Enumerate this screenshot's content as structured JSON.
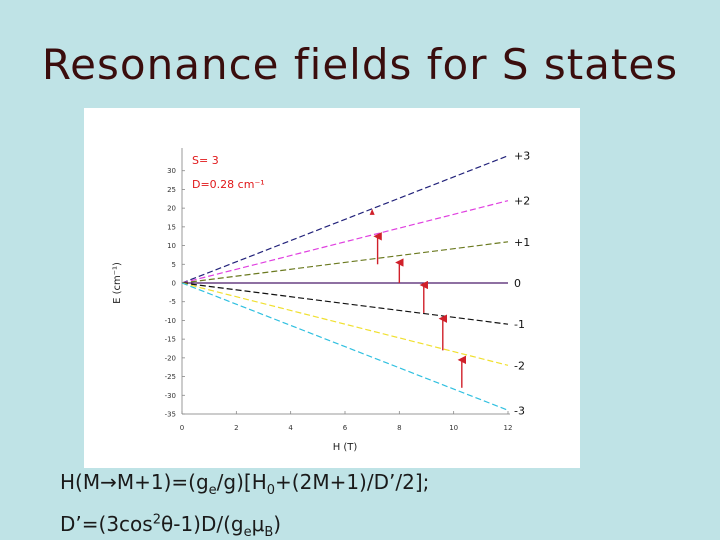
{
  "slide": {
    "title": "Resonance fields for S states",
    "formula1": {
      "a": "H(M",
      "arrow": "→",
      "b": "M+1)=(g",
      "e_sub": "e",
      "c": "/g)[H",
      "zero_sub": "0",
      "d": "+(2M+1)/D’/2];"
    },
    "formula2": {
      "a": "D’=(3cos",
      "sq_sup": "2",
      "theta": "θ",
      "b": "-1)D/(g",
      "e_sub": "e",
      "mu": "μ",
      "B_sub": "B",
      "c": ")"
    }
  },
  "chart_data": {
    "type": "line",
    "title": "",
    "xlabel": "H (T)",
    "ylabel": "E (cm⁻¹)",
    "xlim": [
      0,
      12
    ],
    "ylim": [
      -35,
      35
    ],
    "xticks": [
      0,
      2,
      4,
      6,
      8,
      10,
      12
    ],
    "xtick_labels": [
      "0",
      "2",
      "4",
      "6",
      "8",
      "10",
      "12"
    ],
    "yticks": [
      30,
      25,
      20,
      15,
      10,
      5,
      0,
      -5,
      -10,
      -15,
      -20,
      -25,
      -30,
      -35
    ],
    "ytick_labels": [
      "30",
      "25",
      "20",
      "15",
      "10",
      "5",
      "0",
      "-5",
      "-10",
      "-15",
      "-20",
      "-25",
      "-30",
      "-35"
    ],
    "annotations": [
      "S= 3",
      "D=0.28 cm⁻¹"
    ],
    "series": [
      {
        "name": "+3",
        "color": "#22227a",
        "x": [
          0,
          12
        ],
        "y": [
          0,
          34
        ]
      },
      {
        "name": "+2",
        "color": "#e040e0",
        "x": [
          0,
          12
        ],
        "y": [
          0,
          22
        ]
      },
      {
        "name": "+1",
        "color": "#6b7a20",
        "x": [
          0,
          12
        ],
        "y": [
          0,
          11
        ]
      },
      {
        "name": "0",
        "color": "#4a1a6a",
        "x": [
          0,
          12
        ],
        "y": [
          0,
          0
        ]
      },
      {
        "name": "-1",
        "color": "#111111",
        "x": [
          0,
          12
        ],
        "y": [
          0,
          -11
        ]
      },
      {
        "name": "-2",
        "color": "#f0e030",
        "x": [
          0,
          12
        ],
        "y": [
          0,
          -22
        ]
      },
      {
        "name": "-3",
        "color": "#30c0e0",
        "x": [
          0,
          12
        ],
        "y": [
          0,
          -34
        ]
      }
    ],
    "transitions": [
      {
        "x": 7.0,
        "y0": 19,
        "y1": 19
      },
      {
        "x": 7.2,
        "y0": 5,
        "y1": 13
      },
      {
        "x": 8.0,
        "y0": 0,
        "y1": 6
      },
      {
        "x": 8.9,
        "y0": -8,
        "y1": 0
      },
      {
        "x": 9.6,
        "y0": -18,
        "y1": -9
      },
      {
        "x": 10.3,
        "y0": -28,
        "y1": -20
      }
    ],
    "arrow_color": "#d0202a",
    "grid": false
  }
}
